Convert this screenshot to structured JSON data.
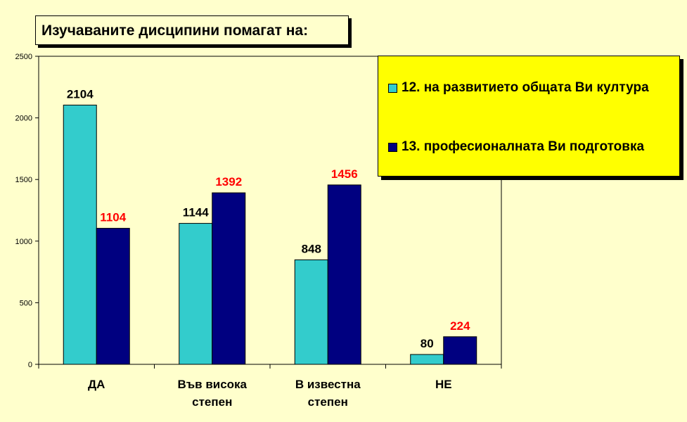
{
  "title": "Изучаваните дисципини помагат на:",
  "colors": {
    "background": "#FFFFCC",
    "series1": "#33CCCC",
    "series2": "#000080",
    "label1": "#000000",
    "label2": "#FF0000",
    "legend_bg": "#FFFF00"
  },
  "chart_data": {
    "type": "bar",
    "title": "Изучаваните дисципини помагат на:",
    "categories": [
      [
        "ДА"
      ],
      [
        "Във висока",
        "степен"
      ],
      [
        "В известна",
        "степен"
      ],
      [
        "НЕ"
      ]
    ],
    "series": [
      {
        "name": "12. на развитието общата Ви култура",
        "values": [
          2104,
          1144,
          848,
          80
        ]
      },
      {
        "name": "13. професионалната Ви подготовка",
        "values": [
          1104,
          1392,
          1456,
          224
        ]
      }
    ],
    "ylim": [
      0,
      2500
    ],
    "yticks": [
      0,
      500,
      1000,
      1500,
      2000,
      2500
    ],
    "legend_position": "top-right",
    "grid": false
  }
}
